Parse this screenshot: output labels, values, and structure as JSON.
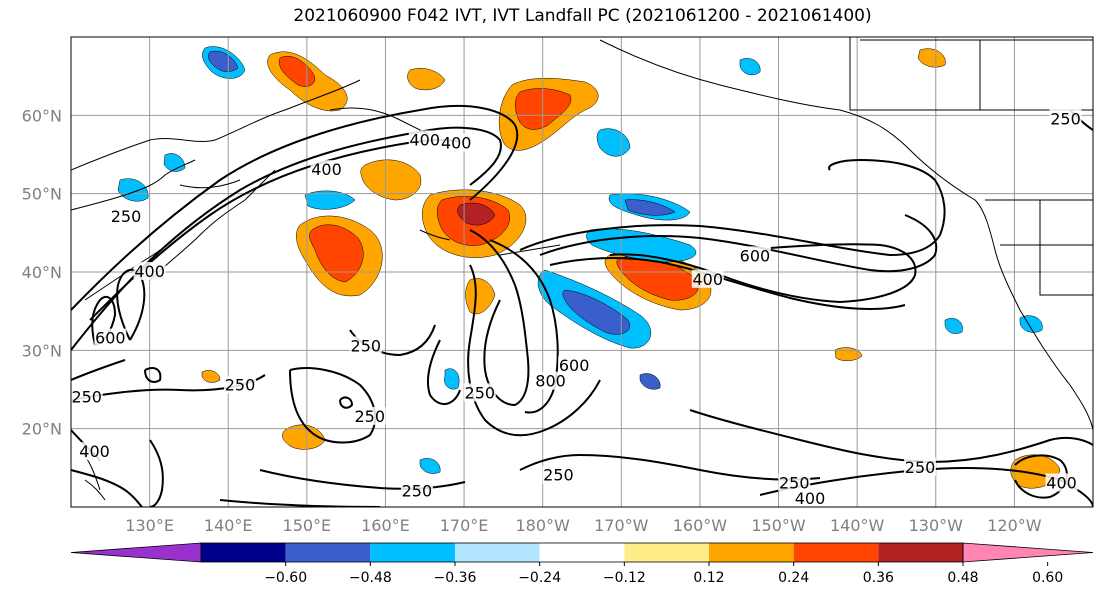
{
  "title": "2021060900 F042 IVT, IVT Landfall PC (2021061200 - 2021061400)",
  "map": {
    "lat_labels": [
      {
        "lat": 60,
        "text": "60°N"
      },
      {
        "lat": 50,
        "text": "50°N"
      },
      {
        "lat": 40,
        "text": "40°N"
      },
      {
        "lat": 30,
        "text": "30°N"
      },
      {
        "lat": 20,
        "text": "20°N"
      }
    ],
    "lon_labels": [
      {
        "lon": 130,
        "text": "130°E"
      },
      {
        "lon": 140,
        "text": "140°E"
      },
      {
        "lon": 150,
        "text": "150°E"
      },
      {
        "lon": 160,
        "text": "160°E"
      },
      {
        "lon": 170,
        "text": "170°E"
      },
      {
        "lon": 180,
        "text": "180°W"
      },
      {
        "lon": 190,
        "text": "170°W"
      },
      {
        "lon": 200,
        "text": "160°W"
      },
      {
        "lon": 210,
        "text": "150°W"
      },
      {
        "lon": 220,
        "text": "140°W"
      },
      {
        "lon": 230,
        "text": "130°W"
      },
      {
        "lon": 240,
        "text": "120°W"
      }
    ],
    "contour_labels": [
      {
        "text": "400",
        "lon": 165,
        "lat": 56.8
      },
      {
        "text": "400",
        "lon": 169,
        "lat": 56.4
      },
      {
        "text": "400",
        "lon": 152.5,
        "lat": 53
      },
      {
        "text": "250",
        "lon": 127,
        "lat": 47
      },
      {
        "text": "400",
        "lon": 130,
        "lat": 40
      },
      {
        "text": "600",
        "lon": 125,
        "lat": 31.5
      },
      {
        "text": "600",
        "lon": 207,
        "lat": 42
      },
      {
        "text": "400",
        "lon": 201,
        "lat": 39
      },
      {
        "text": "250",
        "lon": 157.5,
        "lat": 30.5
      },
      {
        "text": "250",
        "lon": 141.5,
        "lat": 25.5
      },
      {
        "text": "250",
        "lon": 172,
        "lat": 24.5
      },
      {
        "text": "250",
        "lon": 158,
        "lat": 21.5
      },
      {
        "text": "800",
        "lon": 181,
        "lat": 26
      },
      {
        "text": "600",
        "lon": 184,
        "lat": 28
      },
      {
        "text": "250",
        "lon": 122,
        "lat": 24
      },
      {
        "text": "400",
        "lon": 123,
        "lat": 17
      },
      {
        "text": "250",
        "lon": 182,
        "lat": 14
      },
      {
        "text": "250",
        "lon": 164,
        "lat": 12
      },
      {
        "text": "250",
        "lon": 212,
        "lat": 13
      },
      {
        "text": "400",
        "lon": 214,
        "lat": 11
      },
      {
        "text": "250",
        "lon": 228,
        "lat": 15
      },
      {
        "text": "400",
        "lon": 246,
        "lat": 13
      },
      {
        "text": "250",
        "lon": 246.5,
        "lat": 59.5
      }
    ]
  },
  "colorbar": {
    "colors": [
      "#9932cc",
      "#00008b",
      "#3a5fcd",
      "#00bfff",
      "#b2e5ff",
      "#ffffff",
      "#ffed8a",
      "#ffa500",
      "#ff4500",
      "#b22222",
      "#ff85b2"
    ],
    "ticks": [
      "−0.60",
      "−0.48",
      "−0.36",
      "−0.24",
      "−0.12",
      "0.12",
      "0.24",
      "0.36",
      "0.48",
      "0.60"
    ]
  }
}
